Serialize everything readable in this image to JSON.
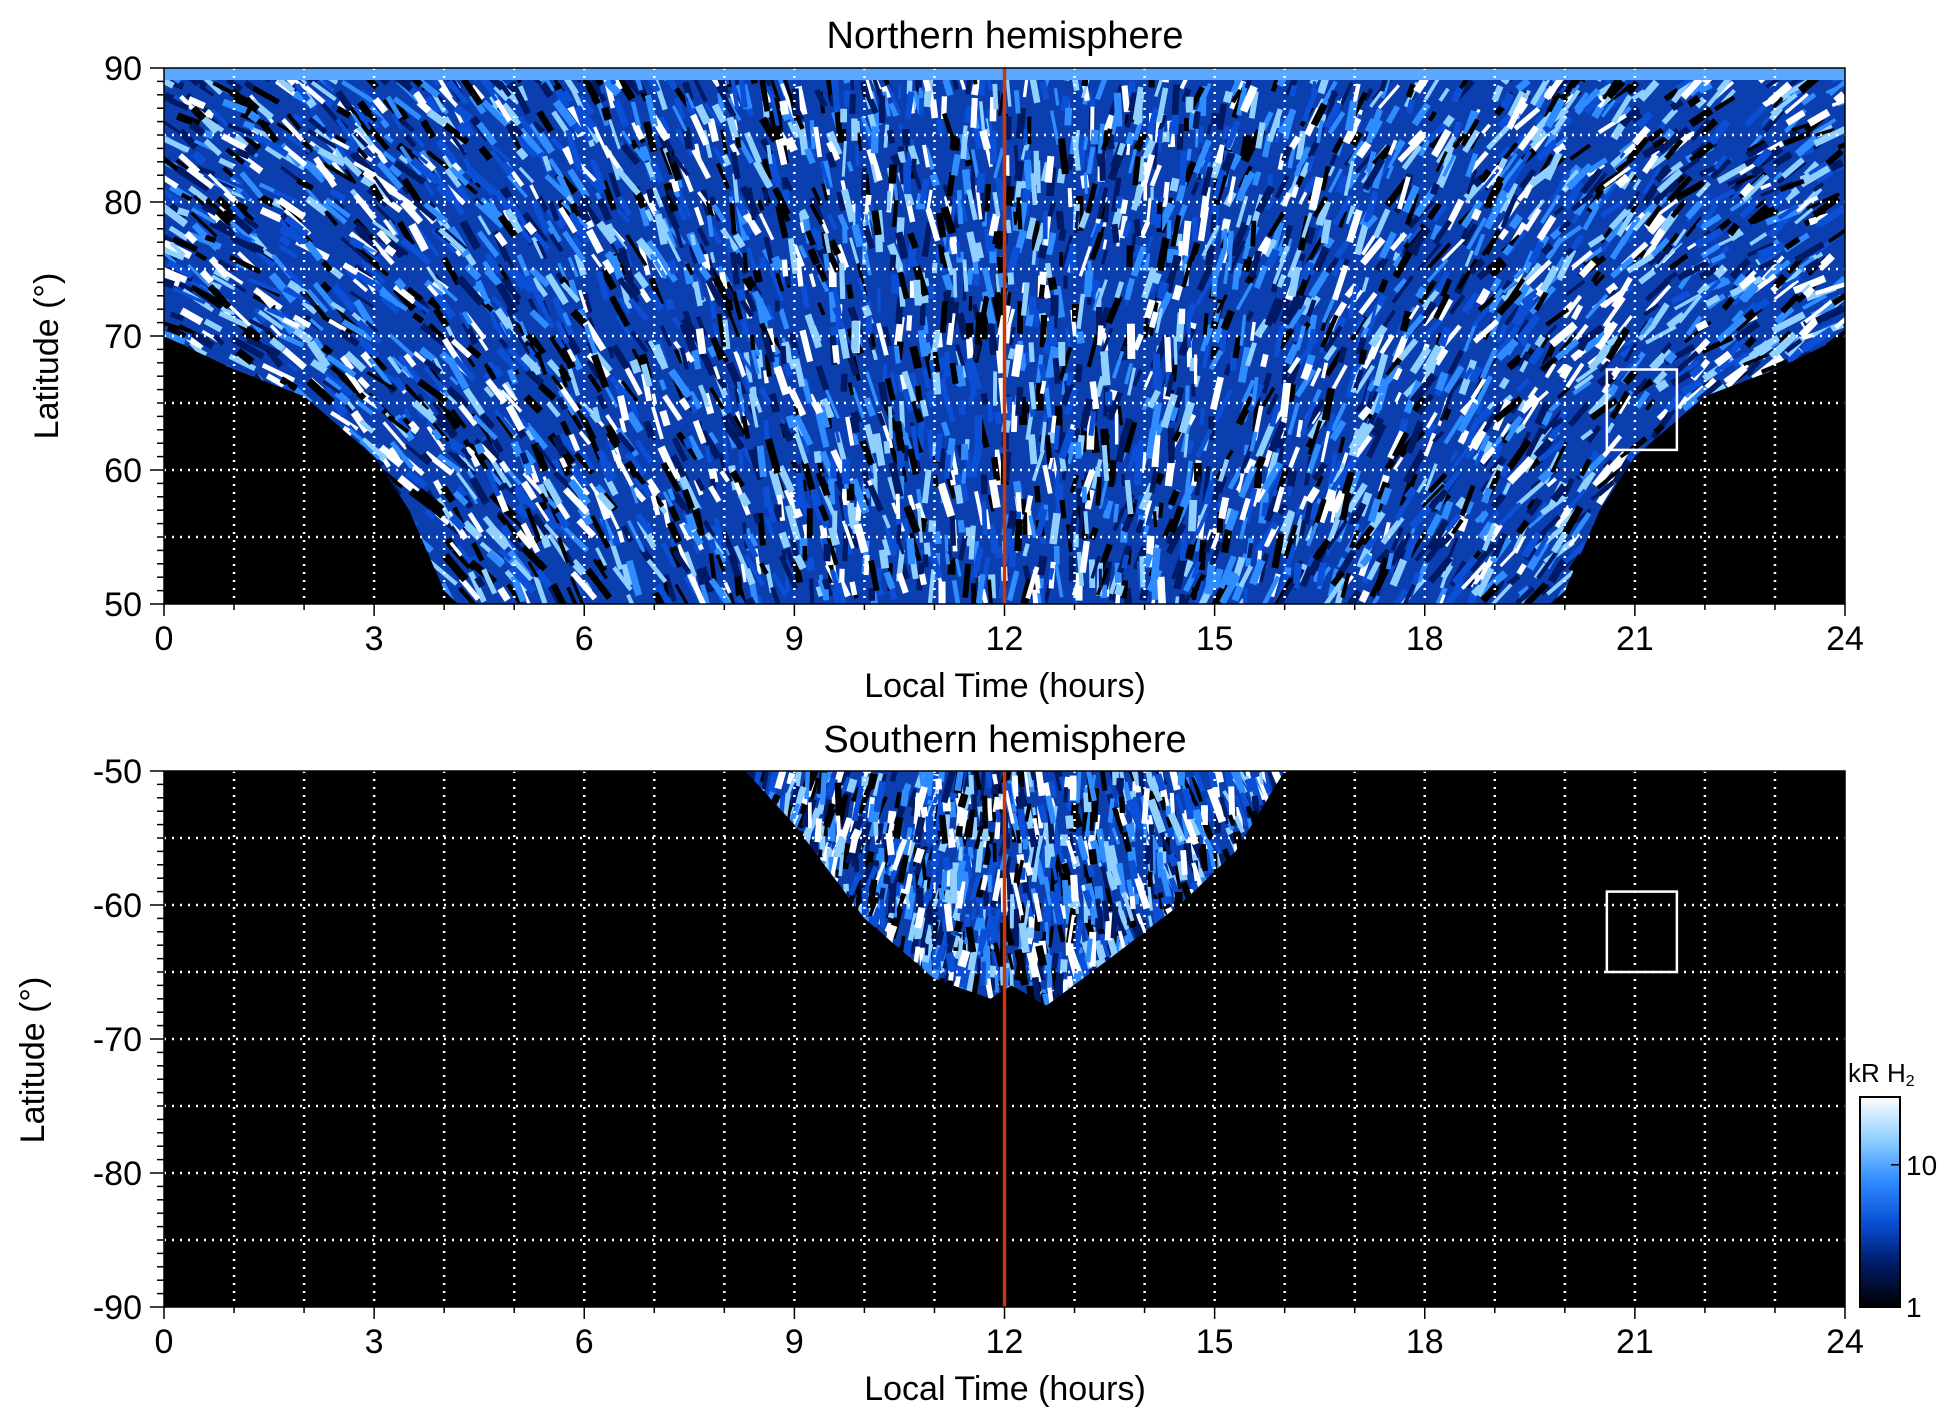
{
  "colorbar": {
    "label": "kR H",
    "label_sub": "2",
    "ticks": [
      {
        "value": 1,
        "label": "1"
      },
      {
        "value": 10,
        "label": "10"
      }
    ],
    "min": 1,
    "max": 30,
    "scale": "log",
    "colors": [
      "#000000",
      "#001a66",
      "#0a4fd6",
      "#2f8cff",
      "#8fd0ff",
      "#ffffff"
    ]
  },
  "colors": {
    "noon_line": "#c8380f",
    "grid": "#ffffff",
    "background": "#000000",
    "box": "#ffffff"
  },
  "chart_data": [
    {
      "type": "heatmap",
      "title": "Northern hemisphere",
      "xlabel": "Local Time (hours)",
      "ylabel": "Latitude (°)",
      "xlim": [
        0,
        24
      ],
      "ylim": [
        50,
        90
      ],
      "xticks": [
        {
          "value": 0,
          "label": "0"
        },
        {
          "value": 3,
          "label": "3"
        },
        {
          "value": 6,
          "label": "6"
        },
        {
          "value": 9,
          "label": "9"
        },
        {
          "value": 12,
          "label": "12"
        },
        {
          "value": 15,
          "label": "15"
        },
        {
          "value": 18,
          "label": "18"
        },
        {
          "value": 21,
          "label": "21"
        },
        {
          "value": 24,
          "label": "24"
        }
      ],
      "yticks": [
        {
          "value": 50,
          "label": "50"
        },
        {
          "value": 60,
          "label": "60"
        },
        {
          "value": 70,
          "label": "70"
        },
        {
          "value": 80,
          "label": "80"
        },
        {
          "value": 90,
          "label": "90"
        }
      ],
      "grid": true,
      "grid_x_step": 1,
      "grid_y_step": 5,
      "marker_line_x": 12,
      "box": {
        "x": [
          20.6,
          21.6
        ],
        "y": [
          61.5,
          67.5
        ]
      },
      "coverage_boundary": [
        [
          0,
          70
        ],
        [
          1,
          67.5
        ],
        [
          2,
          65.5
        ],
        [
          3,
          61
        ],
        [
          3.5,
          57
        ],
        [
          4,
          51
        ],
        [
          4.2,
          50
        ],
        [
          19.8,
          50
        ],
        [
          20,
          51
        ],
        [
          20.5,
          57
        ],
        [
          21,
          61
        ],
        [
          22,
          65.5
        ],
        [
          23,
          67.5
        ],
        [
          24,
          70
        ]
      ]
    },
    {
      "type": "heatmap",
      "title": "Southern hemisphere",
      "xlabel": "Local Time (hours)",
      "ylabel": "Latitude (°)",
      "xlim": [
        0,
        24
      ],
      "ylim": [
        -90,
        -50
      ],
      "xticks": [
        {
          "value": 0,
          "label": "0"
        },
        {
          "value": 3,
          "label": "3"
        },
        {
          "value": 6,
          "label": "6"
        },
        {
          "value": 9,
          "label": "9"
        },
        {
          "value": 12,
          "label": "12"
        },
        {
          "value": 15,
          "label": "15"
        },
        {
          "value": 18,
          "label": "18"
        },
        {
          "value": 21,
          "label": "21"
        },
        {
          "value": 24,
          "label": "24"
        }
      ],
      "yticks": [
        {
          "value": -50,
          "label": "-50"
        },
        {
          "value": -60,
          "label": "-60"
        },
        {
          "value": -70,
          "label": "-70"
        },
        {
          "value": -80,
          "label": "-80"
        },
        {
          "value": -90,
          "label": "-90"
        }
      ],
      "grid": true,
      "grid_x_step": 1,
      "grid_y_step": 5,
      "marker_line_x": 12,
      "box": {
        "x": [
          20.6,
          21.6
        ],
        "y": [
          -65,
          -59
        ]
      },
      "coverage_boundary": [
        [
          8.3,
          -50
        ],
        [
          9,
          -54
        ],
        [
          10,
          -61
        ],
        [
          11,
          -65.5
        ],
        [
          11.8,
          -67
        ],
        [
          12.1,
          -66
        ],
        [
          12.6,
          -67.5
        ],
        [
          13.5,
          -64
        ],
        [
          14.5,
          -60
        ],
        [
          15.3,
          -56
        ],
        [
          16,
          -50
        ]
      ]
    }
  ]
}
